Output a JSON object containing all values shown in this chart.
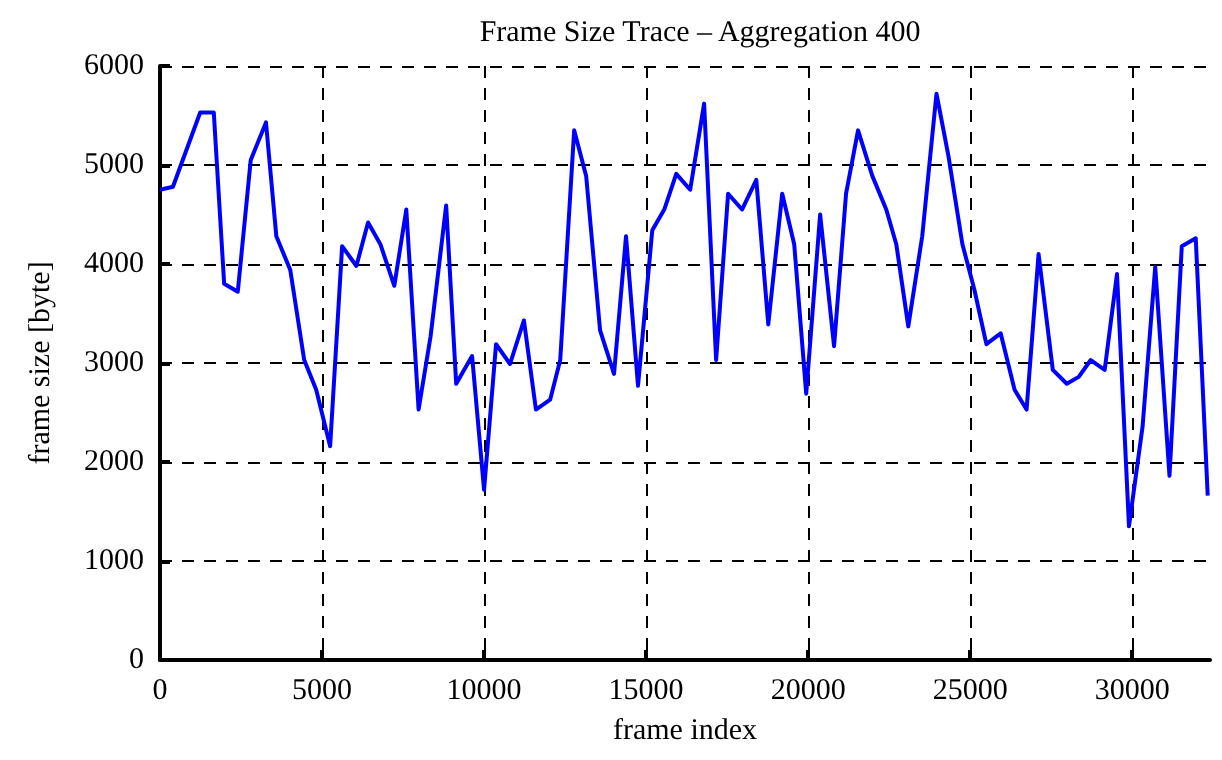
{
  "chart_data": {
    "type": "line",
    "title": "Frame Size Trace – Aggregation 400",
    "xlabel": "frame index",
    "ylabel": "frame size [byte]",
    "x": [
      0,
      400,
      1240,
      1660,
      1980,
      2400,
      2800,
      3270,
      3590,
      4020,
      4450,
      4820,
      5250,
      5620,
      6060,
      6420,
      6800,
      7230,
      7600,
      7980,
      8350,
      8830,
      9140,
      9630,
      10000,
      10370,
      10800,
      11230,
      11600,
      12040,
      12350,
      12780,
      13150,
      13580,
      14010,
      14380,
      14750,
      15190,
      15560,
      15930,
      16360,
      16790,
      17160,
      17530,
      17960,
      18400,
      18770,
      19200,
      19570,
      19940,
      20370,
      20800,
      21170,
      21540,
      21980,
      22410,
      22720,
      23090,
      23520,
      23960,
      24330,
      24760,
      25130,
      25500,
      25940,
      26370,
      26740,
      27110,
      27550,
      27980,
      28350,
      28720,
      29150,
      29530,
      29900,
      30320,
      30710,
      31150,
      31530,
      31960,
      32330
    ],
    "series": [
      {
        "color": "#0000ff",
        "values": [
          4750,
          4780,
          5530,
          5530,
          3800,
          3720,
          5050,
          5430,
          4280,
          3940,
          3030,
          2730,
          2160,
          4180,
          3980,
          4420,
          4200,
          3780,
          4550,
          2530,
          3270,
          4590,
          2790,
          3070,
          1720,
          3190,
          2990,
          3430,
          2530,
          2630,
          3030,
          5350,
          4890,
          3330,
          2890,
          4280,
          2770,
          4340,
          4550,
          4910,
          4750,
          5620,
          3030,
          4710,
          4550,
          4850,
          3390,
          4710,
          4200,
          2690,
          4500,
          3170,
          4710,
          5350,
          4890,
          4550,
          4200,
          3370,
          4280,
          5720,
          5090,
          4200,
          3740,
          3190,
          3300,
          2730,
          2530,
          4100,
          2930,
          2790,
          2860,
          3030,
          2930,
          3900,
          1350,
          2360,
          3970,
          1860,
          4180,
          4260,
          1660
        ]
      }
    ],
    "xlim": [
      0,
      32400
    ],
    "xticks": [
      0,
      5000,
      10000,
      15000,
      20000,
      25000,
      30000
    ],
    "ylim": [
      0,
      6000
    ],
    "yticks": [
      0,
      1000,
      2000,
      3000,
      4000,
      5000,
      6000
    ],
    "grid": true,
    "marker": "none",
    "line_style": "solid"
  }
}
